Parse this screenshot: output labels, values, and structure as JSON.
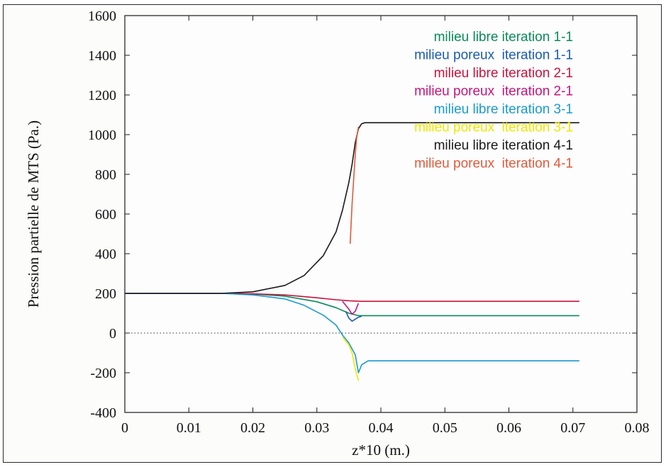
{
  "chart_data": {
    "type": "line",
    "xlabel": "z*10 (m.)",
    "ylabel": "Pression partielle de MTS (Pa.)",
    "xlim": [
      0,
      0.08
    ],
    "ylim": [
      -400,
      1600
    ],
    "x_ticks": [
      "0",
      "0.01",
      "0.02",
      "0.03",
      "0.04",
      "0.05",
      "0.06",
      "0.07",
      "0.08"
    ],
    "y_ticks": [
      "-400",
      "-200",
      "0",
      "200",
      "400",
      "600",
      "800",
      "1000",
      "1200",
      "1400",
      "1600"
    ],
    "zero_line": true,
    "legend_position": "top-right",
    "series": [
      {
        "name": "milieu libre iteration 1-1",
        "color": "#0a8a5a",
        "x": [
          0,
          0.015,
          0.02,
          0.025,
          0.03,
          0.033,
          0.035,
          0.0365,
          0.038,
          0.045,
          0.071
        ],
        "y": [
          200,
          200,
          197,
          186,
          158,
          128,
          100,
          88,
          88,
          88,
          88
        ]
      },
      {
        "name": "milieu poreux  iteration 1-1",
        "color": "#1a5bb0",
        "x": [
          0.0345,
          0.035,
          0.0355,
          0.036,
          0.0365,
          0.037
        ],
        "y": [
          110,
          75,
          60,
          70,
          80,
          85
        ]
      },
      {
        "name": "milieu libre iteration 2-1",
        "color": "#c8143c",
        "x": [
          0,
          0.015,
          0.02,
          0.025,
          0.03,
          0.033,
          0.035,
          0.037,
          0.045,
          0.071
        ],
        "y": [
          200,
          200,
          198,
          192,
          178,
          168,
          163,
          160,
          160,
          160
        ]
      },
      {
        "name": "milieu poreux  iteration 2-1",
        "color": "#c8147a",
        "x": [
          0.034,
          0.035,
          0.0355,
          0.036,
          0.0365
        ],
        "y": [
          160,
          120,
          95,
          110,
          150
        ]
      },
      {
        "name": "milieu libre iteration 3-1",
        "color": "#1a9ad0",
        "x": [
          0,
          0.015,
          0.02,
          0.025,
          0.028,
          0.031,
          0.033,
          0.034,
          0.035,
          0.036,
          0.0365,
          0.037,
          0.038,
          0.045,
          0.071
        ],
        "y": [
          200,
          200,
          192,
          172,
          140,
          90,
          40,
          -10,
          -50,
          -110,
          -200,
          -160,
          -140,
          -140,
          -140
        ]
      },
      {
        "name": "milieu poreux  iteration 3-1",
        "color": "#f2e600",
        "x": [
          0.034,
          0.035,
          0.0355,
          0.036,
          0.0365
        ],
        "y": [
          -20,
          -60,
          -100,
          -180,
          -240
        ]
      },
      {
        "name": "milieu libre iteration 4-1",
        "color": "#1a1a1a",
        "x": [
          0,
          0.015,
          0.02,
          0.025,
          0.028,
          0.031,
          0.033,
          0.034,
          0.035,
          0.0355,
          0.036,
          0.0365,
          0.037,
          0.0375,
          0.038,
          0.045,
          0.071
        ],
        "y": [
          200,
          200,
          208,
          240,
          290,
          390,
          510,
          620,
          760,
          850,
          960,
          1030,
          1055,
          1060,
          1060,
          1060,
          1060
        ]
      },
      {
        "name": "milieu poreux  iteration 4-1",
        "color": "#e05a3c",
        "x": [
          0.0352,
          0.0355,
          0.0358,
          0.036,
          0.0362,
          0.0365
        ],
        "y": [
          450,
          650,
          800,
          900,
          980,
          1040
        ]
      }
    ]
  }
}
